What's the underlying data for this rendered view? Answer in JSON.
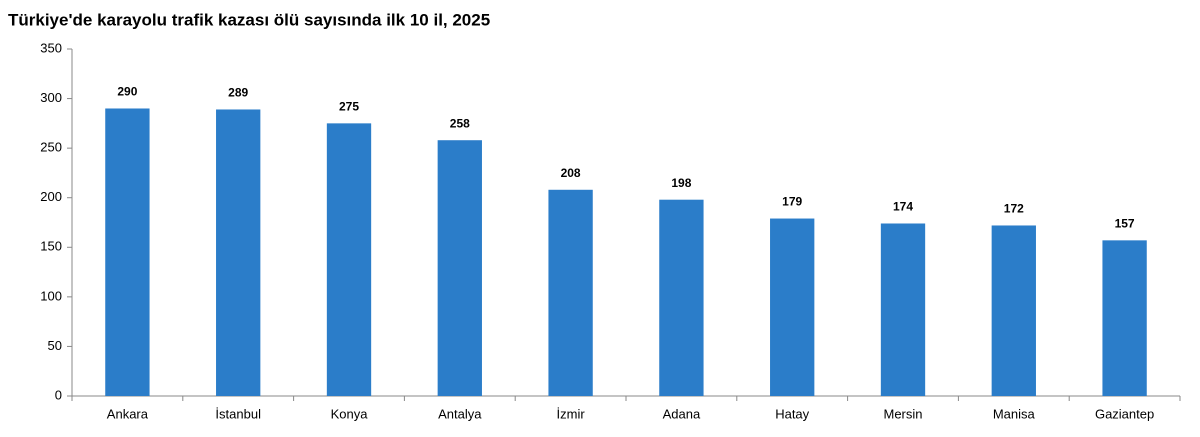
{
  "chart_data": {
    "type": "bar",
    "title": "Türkiye'de karayolu trafik kazası ölü sayısında ilk 10 il, 2025",
    "categories": [
      "Ankara",
      "İstanbul",
      "Konya",
      "Antalya",
      "İzmir",
      "Adana",
      "Hatay",
      "Mersin",
      "Manisa",
      "Gaziantep"
    ],
    "values": [
      290,
      289,
      275,
      258,
      208,
      198,
      179,
      174,
      172,
      157
    ],
    "color": "#2b7dc9",
    "ylim": [
      0,
      350
    ],
    "yticks": [
      0,
      50,
      100,
      150,
      200,
      250,
      300,
      350
    ],
    "grid": false,
    "data_labels": true
  }
}
